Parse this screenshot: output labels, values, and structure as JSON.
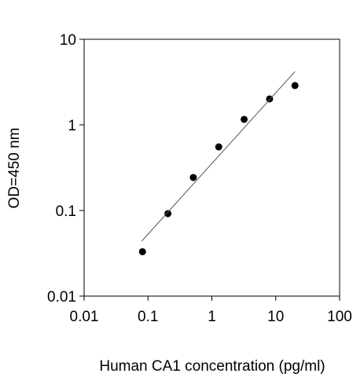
{
  "chart_data": {
    "type": "scatter",
    "xlabel": "Human CA1 concentration (pg/ml)",
    "ylabel": "OD=450 nm",
    "xscale": "log",
    "yscale": "log",
    "xlim": [
      0.01,
      100
    ],
    "ylim": [
      0.01,
      10
    ],
    "xticks": [
      0.01,
      0.1,
      1,
      10,
      100
    ],
    "yticks": [
      0.01,
      0.1,
      1,
      10
    ],
    "series": [
      {
        "color": "#000000",
        "x": [
          0.082,
          0.205,
          0.512,
          1.28,
          3.2,
          8,
          20
        ],
        "values": [
          0.033,
          0.092,
          0.243,
          0.553,
          1.16,
          2.01,
          2.88
        ]
      },
      {
        "type": "line",
        "color": "#555555",
        "x": [
          0.08,
          20
        ],
        "values": [
          0.044,
          4.2
        ]
      }
    ]
  }
}
